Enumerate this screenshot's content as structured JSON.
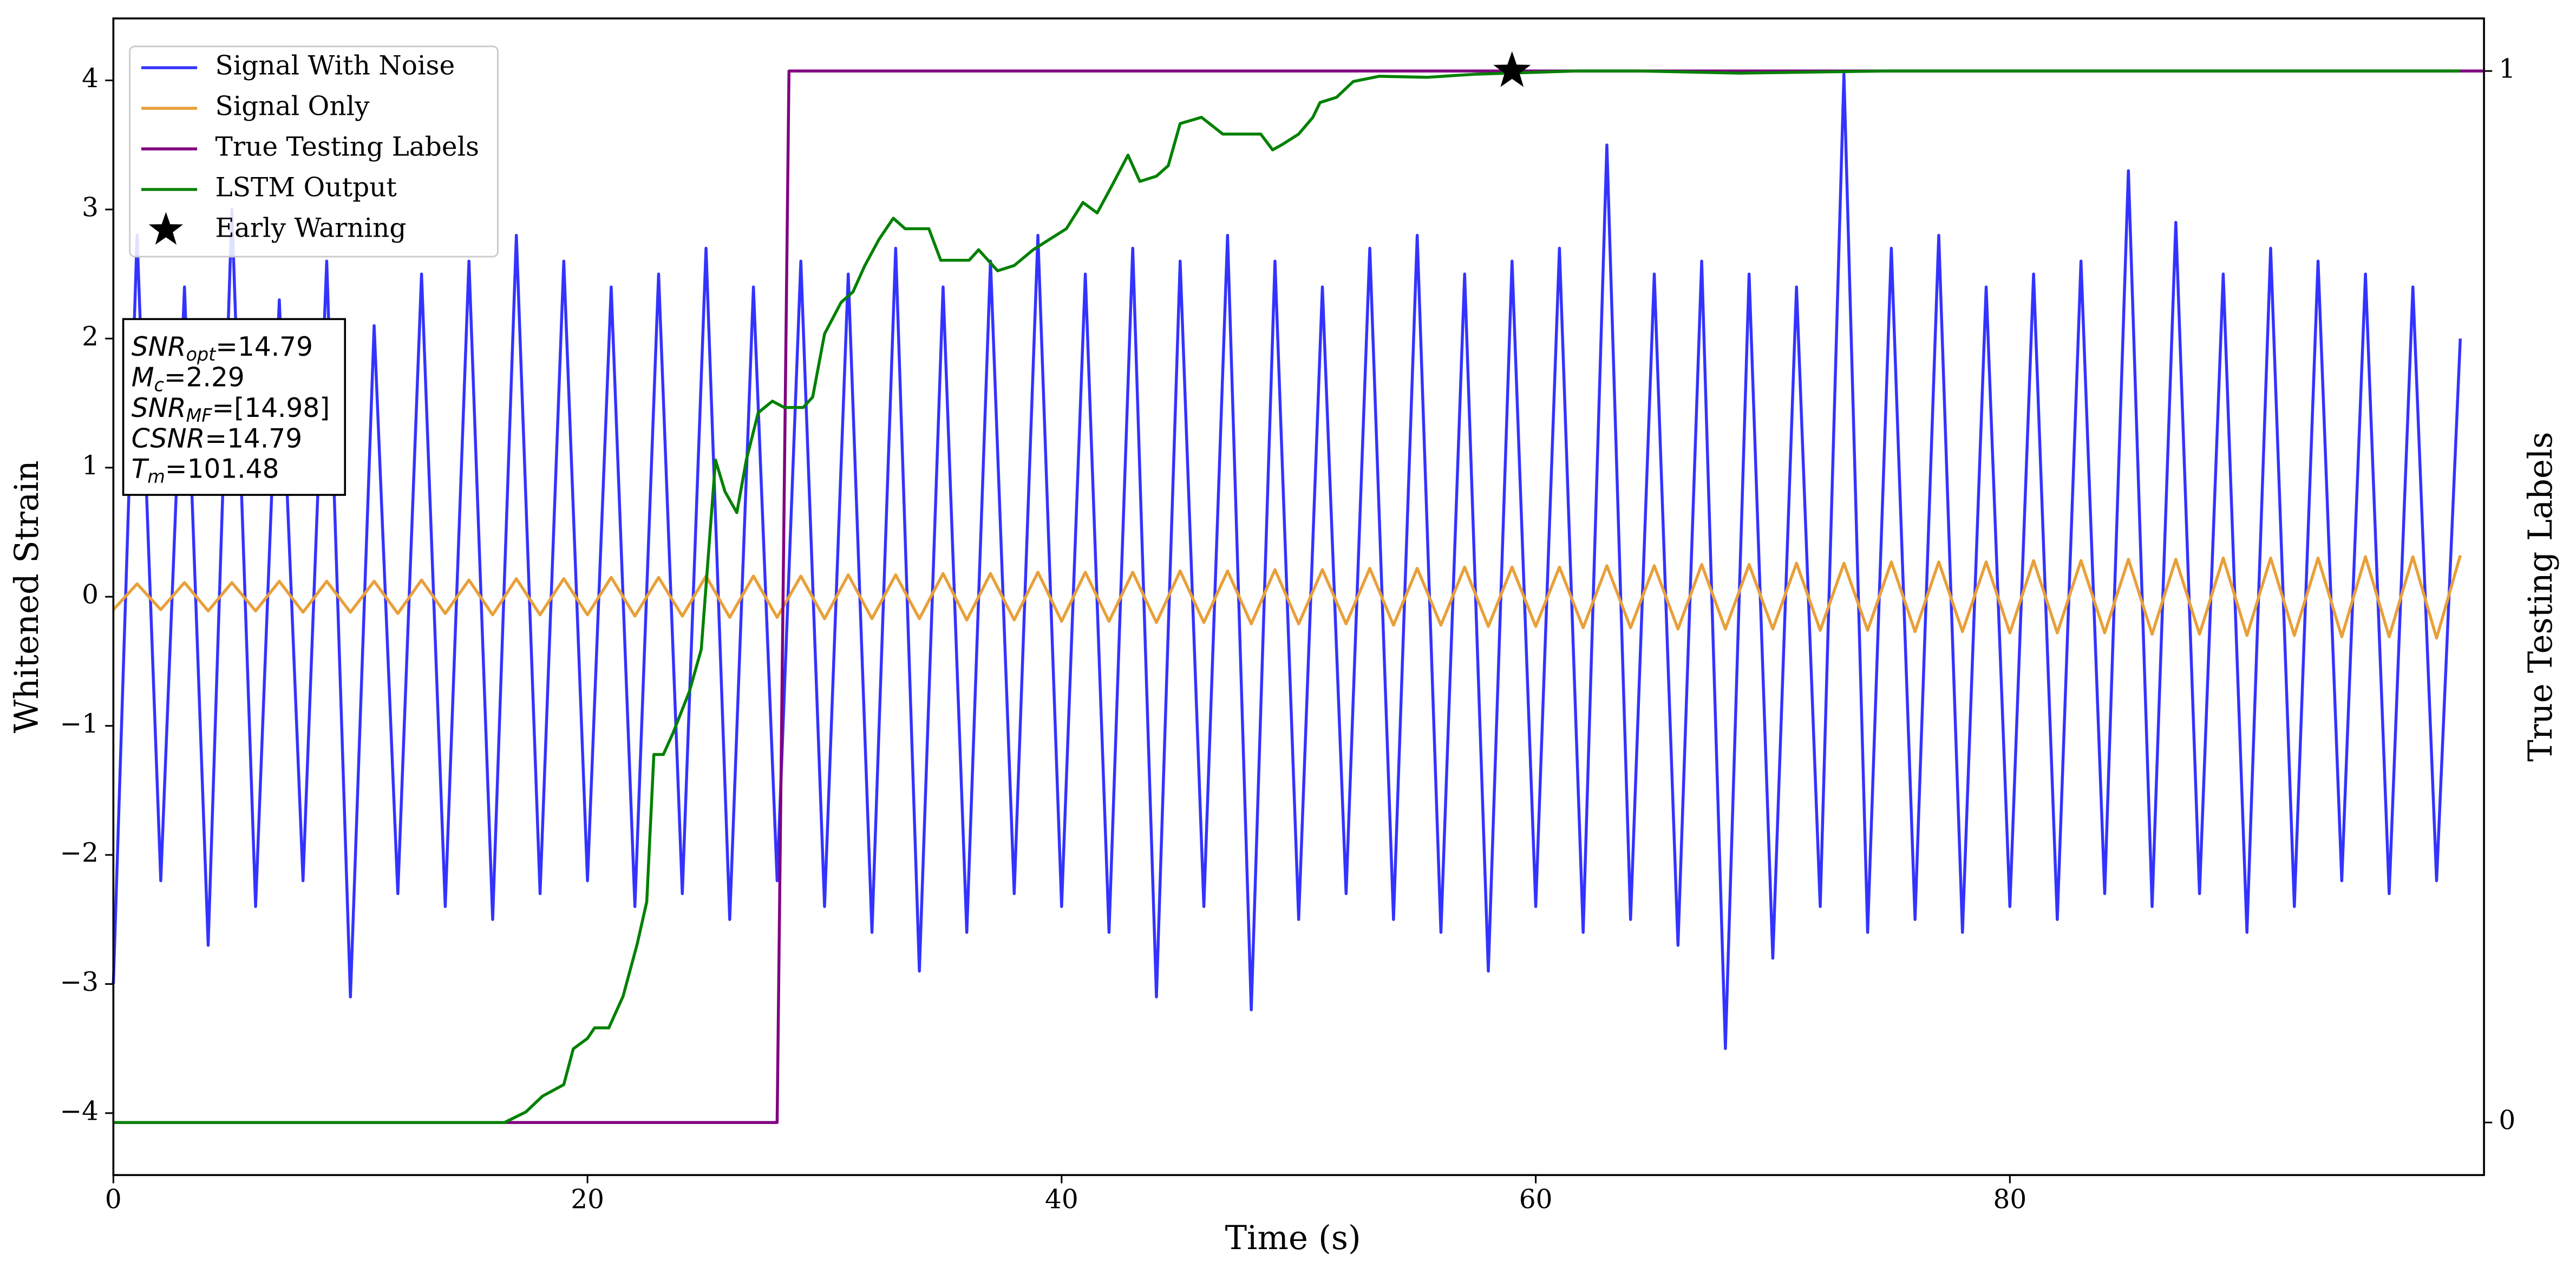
{
  "chart_data": {
    "type": "line",
    "xlabel": "Time (s)",
    "ylabel": "Whitened Strain",
    "y2label": "True Testing Labels",
    "xlim": [
      0,
      100
    ],
    "xticks": [
      0,
      20,
      40,
      60,
      80
    ],
    "ylim": [
      -4.48,
      4.48
    ],
    "yticks": [
      {
        "value": -4,
        "label": "−4"
      },
      {
        "value": -3,
        "label": "−3"
      },
      {
        "value": -2,
        "label": "−2"
      },
      {
        "value": -1,
        "label": "−1"
      },
      0,
      1,
      2,
      3,
      4
    ],
    "y2lim": [
      -0.05,
      1.05
    ],
    "y2ticks": [
      0,
      1
    ],
    "legend": "upper left",
    "annotation": [
      {
        "main": "SNR",
        "sub": "opt",
        "text": "=14.79"
      },
      {
        "main": "M",
        "sub": "c",
        "text": "=2.29"
      },
      {
        "main": "SNR",
        "sub": "MF",
        "text": "=[14.98]"
      },
      {
        "main": "CSNR",
        "text": "=14.79"
      },
      {
        "main": "T",
        "sub": "m",
        "text": "=101.48"
      }
    ],
    "series": [
      {
        "name": "Signal With Noise",
        "color": "#3333ff",
        "axis": "y",
        "x": [
          0,
          1,
          2,
          3,
          4,
          5,
          6,
          7,
          8,
          9,
          10,
          11,
          12,
          13,
          14,
          15,
          16,
          17,
          18,
          19,
          20,
          21,
          22,
          23,
          24,
          25,
          26,
          27,
          28,
          29,
          30,
          31,
          32,
          33,
          34,
          35,
          36,
          37,
          38,
          39,
          40,
          41,
          42,
          43,
          44,
          45,
          46,
          47,
          48,
          49,
          50,
          51,
          52,
          53,
          54,
          55,
          56,
          57,
          58,
          59,
          60,
          61,
          62,
          63,
          64,
          65,
          66,
          67,
          68,
          69,
          70,
          71,
          72,
          73,
          74,
          75,
          76,
          77,
          78,
          79,
          80,
          81,
          82,
          83,
          84,
          85,
          86,
          87,
          88,
          89,
          90,
          91,
          92,
          93,
          94,
          95,
          96,
          97,
          98,
          99
        ],
        "values": [
          -3.0,
          2.8,
          -2.2,
          2.4,
          -2.7,
          3.0,
          -2.4,
          2.3,
          -2.2,
          2.6,
          -3.1,
          2.1,
          -2.3,
          2.5,
          -2.4,
          2.6,
          -2.5,
          2.8,
          -2.3,
          2.6,
          -2.2,
          2.4,
          -2.4,
          2.5,
          -2.3,
          2.7,
          -2.5,
          2.4,
          -2.2,
          2.6,
          -2.4,
          2.5,
          -2.6,
          2.7,
          -2.9,
          2.4,
          -2.6,
          2.6,
          -2.3,
          2.8,
          -2.4,
          2.5,
          -2.6,
          2.7,
          -3.1,
          2.6,
          -2.4,
          2.8,
          -3.2,
          2.6,
          -2.5,
          2.4,
          -2.3,
          2.7,
          -2.5,
          2.8,
          -2.6,
          2.5,
          -2.9,
          2.6,
          -2.4,
          2.7,
          -2.6,
          3.5,
          -2.5,
          2.5,
          -2.7,
          2.6,
          -3.5,
          2.5,
          -2.8,
          2.4,
          -2.4,
          4.05,
          -2.6,
          2.7,
          -2.5,
          2.8,
          -2.6,
          2.4,
          -2.4,
          2.5,
          -2.5,
          2.6,
          -2.3,
          3.3,
          -2.4,
          2.9,
          -2.3,
          2.5,
          -2.6,
          2.7,
          -2.4,
          2.6,
          -2.2,
          2.5,
          -2.3,
          2.4,
          -2.2,
          2.0
        ]
      },
      {
        "name": "Signal Only",
        "color": "#e8a03a",
        "axis": "y",
        "x": [
          0,
          1,
          2,
          3,
          4,
          5,
          6,
          7,
          8,
          9,
          10,
          11,
          12,
          13,
          14,
          15,
          16,
          17,
          18,
          19,
          20,
          21,
          22,
          23,
          24,
          25,
          26,
          27,
          28,
          29,
          30,
          31,
          32,
          33,
          34,
          35,
          36,
          37,
          38,
          39,
          40,
          41,
          42,
          43,
          44,
          45,
          46,
          47,
          48,
          49,
          50,
          51,
          52,
          53,
          54,
          55,
          56,
          57,
          58,
          59,
          60,
          61,
          62,
          63,
          64,
          65,
          66,
          67,
          68,
          69,
          70,
          71,
          72,
          73,
          74,
          75,
          76,
          77,
          78,
          79,
          80,
          81,
          82,
          83,
          84,
          85,
          86,
          87,
          88,
          89,
          90,
          91,
          92,
          93,
          94,
          95,
          96,
          97,
          98,
          99
        ],
        "values": [
          -0.1,
          0.1,
          -0.1,
          0.11,
          -0.11,
          0.11,
          -0.11,
          0.12,
          -0.12,
          0.12,
          -0.12,
          0.12,
          -0.13,
          0.13,
          -0.13,
          0.13,
          -0.14,
          0.14,
          -0.14,
          0.14,
          -0.14,
          0.15,
          -0.15,
          0.15,
          -0.15,
          0.16,
          -0.16,
          0.16,
          -0.16,
          0.16,
          -0.17,
          0.17,
          -0.17,
          0.17,
          -0.17,
          0.18,
          -0.18,
          0.18,
          -0.18,
          0.19,
          -0.19,
          0.19,
          -0.19,
          0.19,
          -0.2,
          0.2,
          -0.2,
          0.2,
          -0.21,
          0.21,
          -0.21,
          0.21,
          -0.21,
          0.22,
          -0.22,
          0.22,
          -0.22,
          0.23,
          -0.23,
          0.23,
          -0.23,
          0.23,
          -0.24,
          0.24,
          -0.24,
          0.24,
          -0.25,
          0.25,
          -0.25,
          0.25,
          -0.25,
          0.26,
          -0.26,
          0.26,
          -0.26,
          0.27,
          -0.27,
          0.27,
          -0.27,
          0.27,
          -0.28,
          0.28,
          -0.28,
          0.28,
          -0.28,
          0.29,
          -0.29,
          0.29,
          -0.29,
          0.3,
          -0.3,
          0.3,
          -0.3,
          0.3,
          -0.31,
          0.31,
          -0.31,
          0.31,
          -0.32,
          0.32
        ]
      },
      {
        "name": "True Testing Labels",
        "color": "#800080",
        "axis": "y2",
        "x": [
          0,
          28,
          28.5,
          100
        ],
        "values": [
          0,
          0,
          1,
          1
        ]
      },
      {
        "name": "LSTM Output",
        "color": "#008000",
        "axis": "y2",
        "x": [
          0,
          16.5,
          17.4,
          18.1,
          19.0,
          19.4,
          20.0,
          20.3,
          20.9,
          21.5,
          22.1,
          22.5,
          22.8,
          23.2,
          23.6,
          24.3,
          24.8,
          25.4,
          25.8,
          26.3,
          26.7,
          27.2,
          27.8,
          28.3,
          29.1,
          29.5,
          30.0,
          30.7,
          31.2,
          31.7,
          32.3,
          32.9,
          33.4,
          33.9,
          34.4,
          34.9,
          36.1,
          36.5,
          37.3,
          38.0,
          38.8,
          39.5,
          40.2,
          40.9,
          41.5,
          42.1,
          42.8,
          43.3,
          44.0,
          44.5,
          45.0,
          45.9,
          46.8,
          47.7,
          48.4,
          48.9,
          49.3,
          50.0,
          50.6,
          50.9,
          51.6,
          52.3,
          53.4,
          55.4,
          57.5,
          58.9,
          61.7,
          64.4,
          68.6,
          74.8,
          99
        ],
        "values": [
          0,
          0,
          0.01,
          0.025,
          0.036,
          0.07,
          0.08,
          0.09,
          0.09,
          0.12,
          0.17,
          0.21,
          0.35,
          0.35,
          0.37,
          0.41,
          0.45,
          0.63,
          0.6,
          0.58,
          0.63,
          0.675,
          0.686,
          0.68,
          0.68,
          0.69,
          0.75,
          0.78,
          0.79,
          0.815,
          0.84,
          0.86,
          0.85,
          0.85,
          0.85,
          0.82,
          0.82,
          0.83,
          0.81,
          0.815,
          0.83,
          0.84,
          0.85,
          0.875,
          0.865,
          0.89,
          0.92,
          0.895,
          0.9,
          0.91,
          0.95,
          0.956,
          0.94,
          0.94,
          0.94,
          0.925,
          0.93,
          0.94,
          0.956,
          0.97,
          0.975,
          0.99,
          0.995,
          0.994,
          0.997,
          0.998,
          1,
          1,
          0.998,
          1,
          1
        ]
      },
      {
        "name": "Early Warning",
        "color": "#000000",
        "axis": "y2",
        "marker": "star",
        "x": [
          59
        ],
        "values": [
          1
        ]
      }
    ]
  }
}
